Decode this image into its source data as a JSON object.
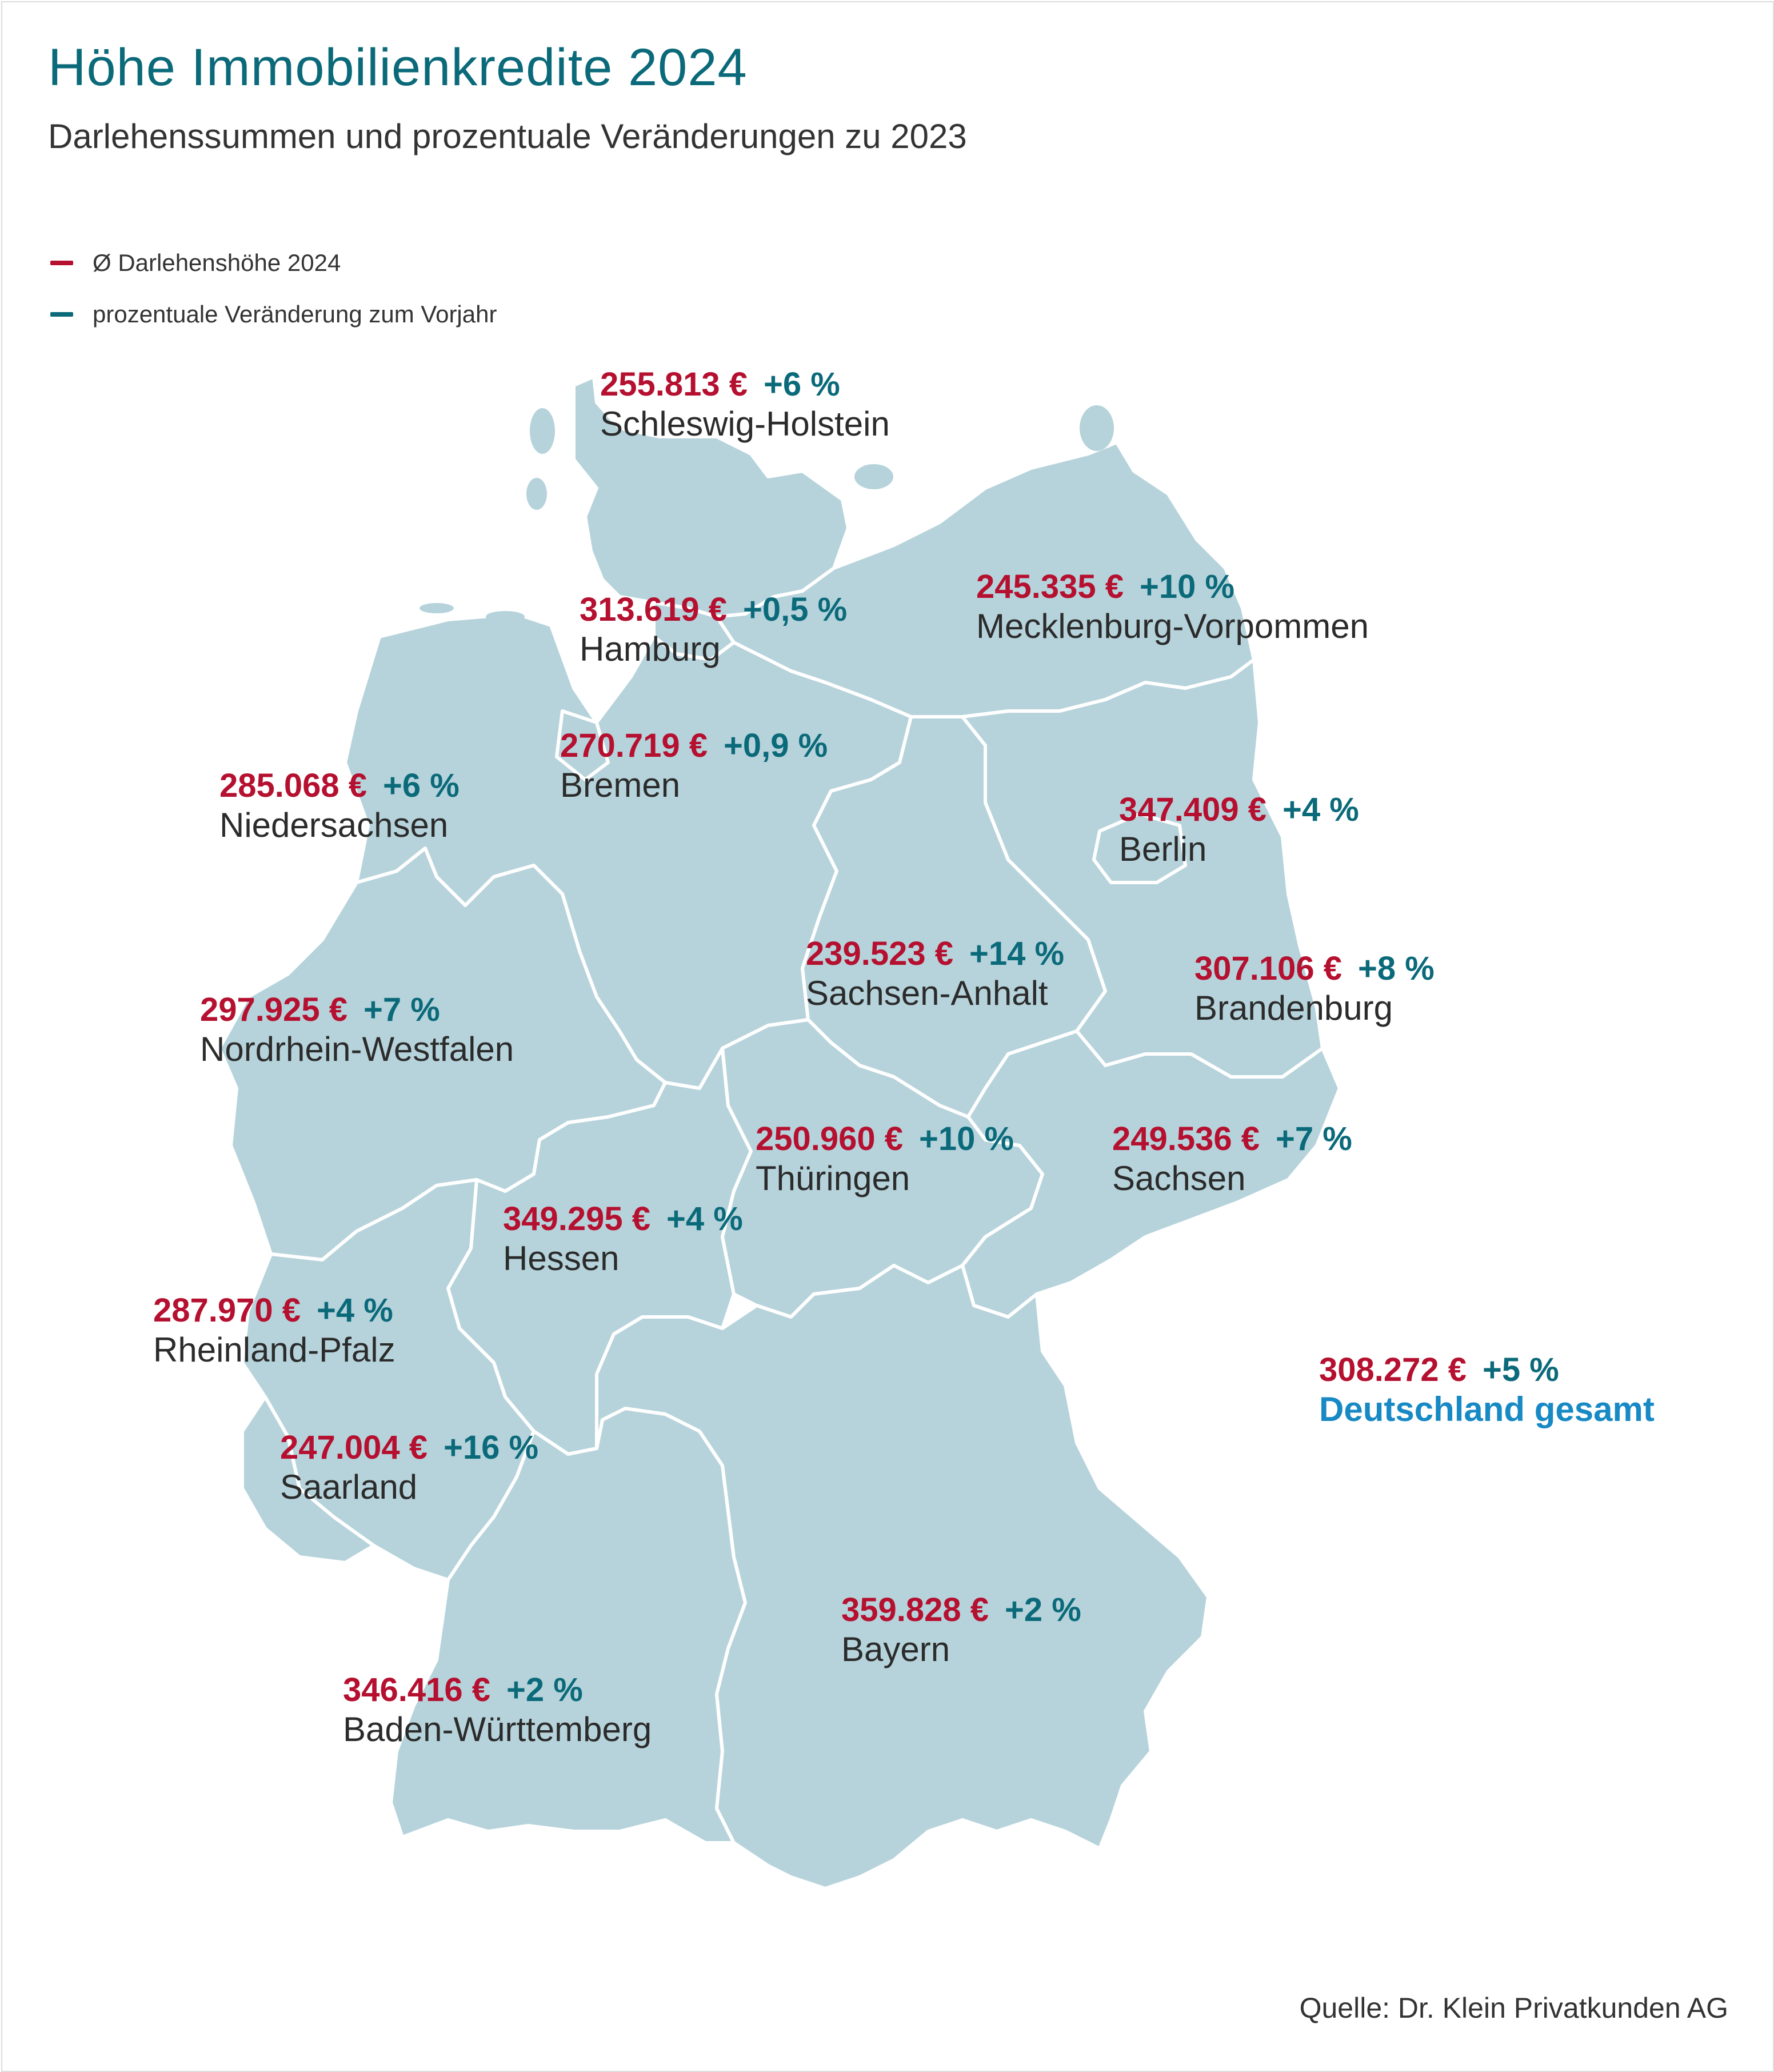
{
  "title": "Höhe Immobilienkredite 2024",
  "subtitle": "Darlehenssummen und prozentuale Veränderungen zu 2023",
  "legend": {
    "amount_label": "Ø Darlehenshöhe 2024",
    "change_label": "prozentuale Veränderung zum Vorjahr",
    "amount_color": "#b5102f",
    "change_color": "#0b6a7a"
  },
  "colors": {
    "land_fill": "#b6d3db",
    "border": "#ffffff",
    "amount": "#b5102f",
    "change": "#0b6a7a",
    "total_name": "#1789c4"
  },
  "states": [
    {
      "name": "Schleswig-Holstein",
      "amount": "255.813 €",
      "change": "+6 %"
    },
    {
      "name": "Hamburg",
      "amount": "313.619 €",
      "change": "+0,5 %"
    },
    {
      "name": "Mecklenburg-Vorpommen",
      "amount": "245.335 €",
      "change": "+10 %"
    },
    {
      "name": "Bremen",
      "amount": "270.719 €",
      "change": "+0,9 %"
    },
    {
      "name": "Niedersachsen",
      "amount": "285.068 €",
      "change": "+6 %"
    },
    {
      "name": "Berlin",
      "amount": "347.409 €",
      "change": "+4 %"
    },
    {
      "name": "Sachsen-Anhalt",
      "amount": "239.523 €",
      "change": "+14 %"
    },
    {
      "name": "Brandenburg",
      "amount": "307.106 €",
      "change": "+8 %"
    },
    {
      "name": "Nordrhein-Westfalen",
      "amount": "297.925 €",
      "change": "+7 %"
    },
    {
      "name": "Thüringen",
      "amount": "250.960 €",
      "change": "+10 %"
    },
    {
      "name": "Sachsen",
      "amount": "249.536 €",
      "change": "+7 %"
    },
    {
      "name": "Hessen",
      "amount": "349.295 €",
      "change": "+4 %"
    },
    {
      "name": "Rheinland-Pfalz",
      "amount": "287.970 €",
      "change": "+4 %"
    },
    {
      "name": "Saarland",
      "amount": "247.004 €",
      "change": "+16 %"
    },
    {
      "name": "Bayern",
      "amount": "359.828 €",
      "change": "+2 %"
    },
    {
      "name": "Baden-Württemberg",
      "amount": "346.416 €",
      "change": "+2 %"
    }
  ],
  "total": {
    "name": "Deutschland gesamt",
    "amount": "308.272 €",
    "change": "+5 %"
  },
  "source": "Quelle: Dr. Klein Privatkunden AG"
}
